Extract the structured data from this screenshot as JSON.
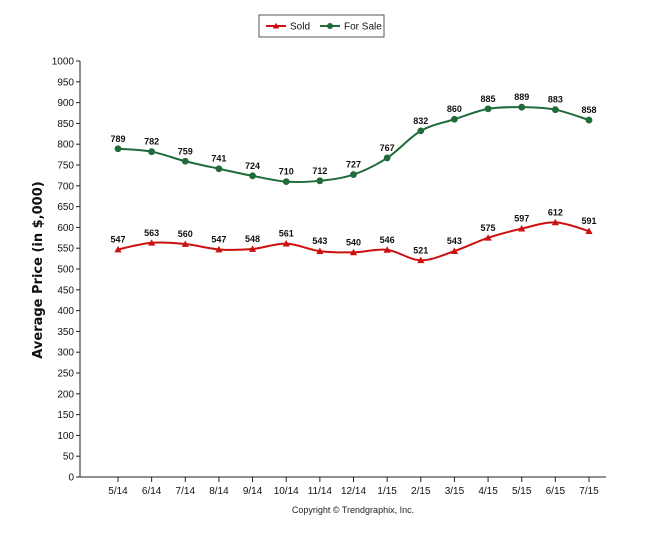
{
  "chart_data": {
    "type": "line",
    "categories": [
      "5/14",
      "6/14",
      "7/14",
      "8/14",
      "9/14",
      "10/14",
      "11/14",
      "12/14",
      "1/15",
      "2/15",
      "3/15",
      "4/15",
      "5/15",
      "6/15",
      "7/15"
    ],
    "series": [
      {
        "name": "Sold",
        "color": "#cc1010",
        "marker": "triangle",
        "values": [
          547,
          563,
          560,
          547,
          548,
          561,
          543,
          540,
          546,
          521,
          543,
          575,
          597,
          612,
          591
        ]
      },
      {
        "name": "For Sale",
        "color": "#1f6b3a",
        "marker": "circle",
        "values": [
          789,
          782,
          759,
          741,
          724,
          710,
          712,
          727,
          767,
          832,
          860,
          885,
          889,
          883,
          858
        ]
      }
    ],
    "ylabel": "Average Price (in $,000)",
    "ylim": [
      0,
      1000
    ],
    "ytick_step": 50,
    "legend_position": "top-center",
    "grid": false
  },
  "footer": {
    "copyright": "Copyright © Trendgraphix, Inc."
  }
}
